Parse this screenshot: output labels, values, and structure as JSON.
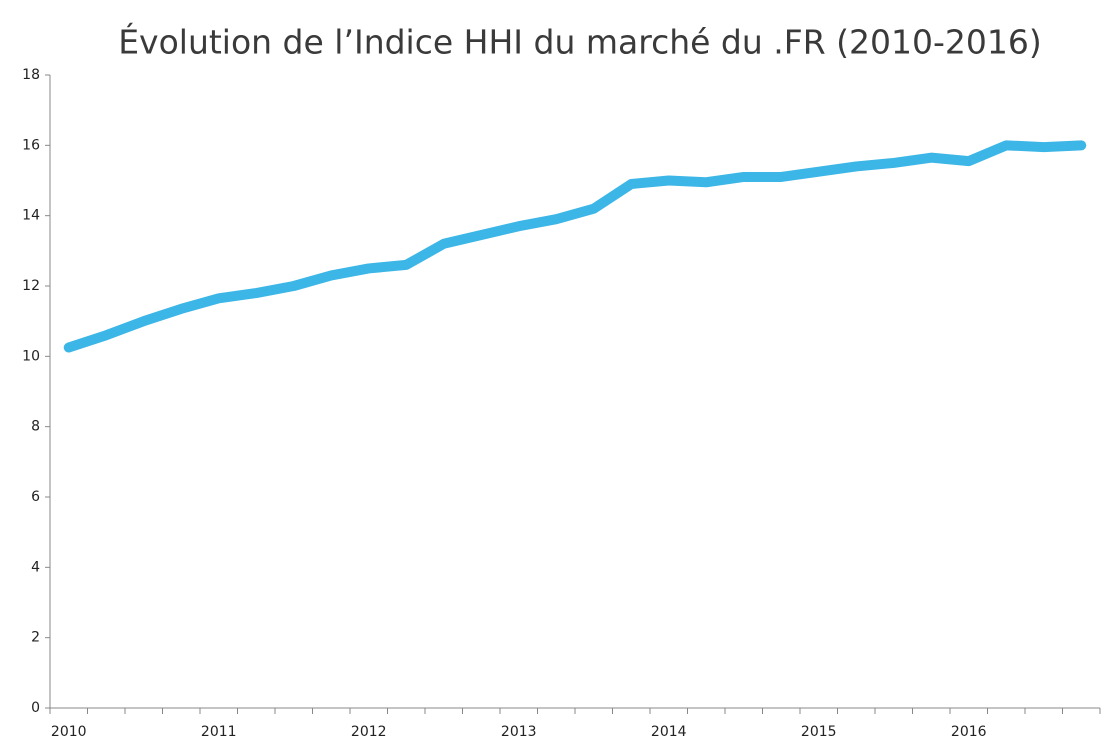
{
  "chart_data": {
    "type": "line",
    "title": "Évolution de l’Indice HHI du marché du .FR (2010-2016)",
    "categories": [
      "2010",
      null,
      null,
      null,
      "2011",
      null,
      null,
      null,
      "2012",
      null,
      null,
      null,
      "2013",
      null,
      null,
      null,
      "2014",
      null,
      null,
      null,
      "2015",
      null,
      null,
      null,
      "2016",
      null,
      null,
      null
    ],
    "series": [
      {
        "name": "HHI",
        "color": "#3cb6e6",
        "values": [
          10.25,
          10.6,
          11.0,
          11.35,
          11.65,
          11.8,
          12.0,
          12.3,
          12.5,
          12.6,
          13.2,
          13.45,
          13.7,
          13.9,
          14.2,
          14.9,
          15.0,
          14.95,
          15.1,
          15.1,
          15.25,
          15.4,
          15.5,
          15.65,
          15.55,
          16.0,
          15.95,
          16.0
        ]
      }
    ],
    "ylim": [
      0,
      18
    ],
    "yticks": [
      0,
      2,
      4,
      6,
      8,
      10,
      12,
      14,
      16,
      18
    ],
    "grid": false
  }
}
